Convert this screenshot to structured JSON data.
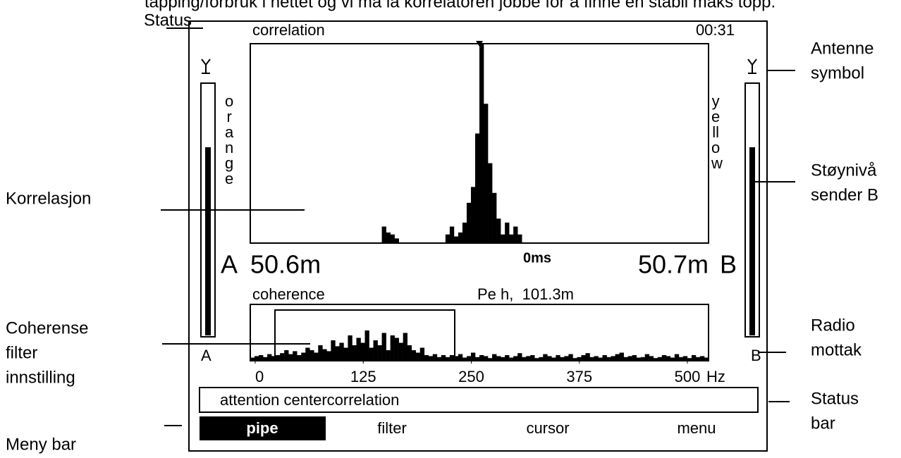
{
  "caption": "tapping/forbruk i nettet og vi må la korrelatoren jobbe for å finne en stabil maks topp.",
  "annotations": {
    "status": [
      "Status"
    ],
    "antenna": [
      "Antenne",
      "symbol"
    ],
    "correlation": [
      "Korrelasjon"
    ],
    "noise": [
      "Støynivå",
      "sender B"
    ],
    "coherence": [
      "Coherense",
      "filter",
      "innstilling"
    ],
    "radio": [
      "Radio",
      "mottak"
    ],
    "statusbar": [
      "Status",
      "bar"
    ],
    "menu": [
      "Meny bar"
    ]
  },
  "screen": {
    "correlation": {
      "title": "correlation",
      "time": "00:31",
      "center": "0ms",
      "values": [
        0,
        0,
        0,
        0,
        0,
        0,
        0,
        0,
        0,
        0,
        0,
        0,
        0,
        0,
        0,
        0,
        0,
        0,
        0,
        0,
        0,
        0,
        0,
        0,
        0,
        0,
        0,
        0,
        0,
        0,
        0,
        8,
        5,
        4,
        2,
        0,
        0,
        0,
        0,
        0,
        0,
        0,
        0,
        0,
        0,
        0,
        4,
        8,
        3,
        5,
        10,
        20,
        28,
        55,
        100,
        70,
        40,
        25,
        12,
        4,
        10,
        4,
        8,
        4,
        0,
        0,
        0,
        0,
        0,
        0,
        0,
        0,
        0,
        0,
        0,
        0,
        0,
        0,
        0,
        0,
        0,
        0,
        0,
        0,
        0,
        0,
        0,
        0,
        0,
        0,
        0,
        0,
        0,
        0,
        0,
        0,
        0,
        0,
        0,
        0,
        0,
        0,
        0,
        0,
        0,
        0,
        0,
        0
      ]
    },
    "channel_a": {
      "label": "A",
      "name": "orange",
      "distance": "50.6m",
      "level": 75
    },
    "channel_b": {
      "label": "B",
      "name": "yellow",
      "distance": "50.7m",
      "level": 75
    },
    "coherence": {
      "title": "coherence",
      "info": "Pe h,  101.3m",
      "unit": "Hz",
      "xlim": [
        0,
        500
      ],
      "xticks": [
        0,
        125,
        250,
        375,
        500
      ],
      "values": [
        5,
        8,
        10,
        6,
        12,
        8,
        10,
        14,
        20,
        12,
        18,
        10,
        15,
        25,
        20,
        15,
        30,
        22,
        18,
        40,
        28,
        35,
        25,
        50,
        30,
        45,
        35,
        60,
        25,
        40,
        30,
        55,
        20,
        50,
        45,
        35,
        55,
        30,
        20,
        15,
        25,
        10,
        8,
        12,
        6,
        10,
        6,
        10,
        8,
        12,
        5,
        8,
        15,
        6,
        10,
        8,
        4,
        12,
        8,
        6,
        10,
        5,
        8,
        14,
        6,
        8,
        10,
        4,
        6,
        12,
        8,
        5,
        10,
        6,
        8,
        12,
        4,
        6,
        10,
        14,
        6,
        8,
        5,
        10,
        6,
        8,
        12,
        15,
        6,
        8,
        10,
        5,
        6,
        12,
        8,
        4,
        6,
        10,
        8,
        5,
        12,
        6,
        8,
        4,
        10,
        6,
        8,
        5
      ]
    },
    "status": "attention centercorrelation",
    "menu": {
      "items": [
        "pipe",
        "filter",
        "cursor",
        "menu"
      ],
      "selected": 0
    }
  }
}
